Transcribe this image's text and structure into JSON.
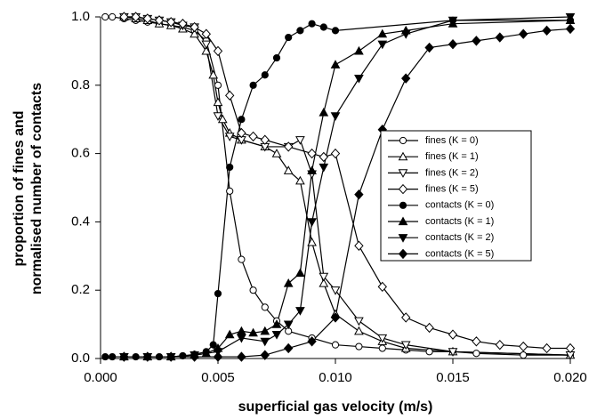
{
  "chart_data": {
    "type": "line",
    "xlabel": "superficial gas velocity (m/s)",
    "ylabel": [
      "proportion of fines and",
      "normalised number of contacts"
    ],
    "xlim": [
      0,
      0.02
    ],
    "ylim": [
      0,
      1
    ],
    "xticks": [
      {
        "value": 0,
        "label": "0.000"
      },
      {
        "value": 0.005,
        "label": "0.005"
      },
      {
        "value": 0.01,
        "label": "0.010"
      },
      {
        "value": 0.015,
        "label": "0.015"
      },
      {
        "value": 0.02,
        "label": "0.020"
      }
    ],
    "yticks": [
      {
        "value": 0,
        "label": "0.0"
      },
      0.2,
      0.4,
      0.6,
      0.8,
      {
        "value": 1,
        "label": "1.0"
      }
    ],
    "legend_position": "right",
    "series": [
      {
        "name": "fines (K = 0)",
        "color": "#000000",
        "marker": "circle",
        "filled": false,
        "x": [
          0.0002,
          0.0005,
          0.001,
          0.0015,
          0.002,
          0.0025,
          0.003,
          0.0035,
          0.004,
          0.0045,
          0.005,
          0.0055,
          0.006,
          0.0065,
          0.007,
          0.0075,
          0.008,
          0.009,
          0.01,
          0.011,
          0.012,
          0.013,
          0.014,
          0.015,
          0.016,
          0.018,
          0.02
        ],
        "values": [
          1.0,
          1.0,
          0.995,
          0.99,
          0.985,
          0.98,
          0.975,
          0.97,
          0.96,
          0.93,
          0.8,
          0.49,
          0.29,
          0.2,
          0.15,
          0.11,
          0.08,
          0.06,
          0.04,
          0.035,
          0.03,
          0.025,
          0.02,
          0.02,
          0.015,
          0.01,
          0.01
        ]
      },
      {
        "name": "fines (K = 1)",
        "color": "#000000",
        "marker": "triangle-up",
        "filled": false,
        "x": [
          0.001,
          0.0015,
          0.002,
          0.0025,
          0.003,
          0.0035,
          0.004,
          0.0045,
          0.0048,
          0.005,
          0.0052,
          0.0055,
          0.006,
          0.007,
          0.0075,
          0.008,
          0.0085,
          0.009,
          0.0095,
          0.01,
          0.011,
          0.012,
          0.013,
          0.015,
          0.02
        ],
        "values": [
          1.0,
          0.995,
          0.99,
          0.98,
          0.975,
          0.965,
          0.95,
          0.9,
          0.83,
          0.75,
          0.7,
          0.66,
          0.64,
          0.62,
          0.6,
          0.55,
          0.52,
          0.34,
          0.22,
          0.13,
          0.08,
          0.05,
          0.03,
          0.02,
          0.01
        ]
      },
      {
        "name": "fines (K = 2)",
        "color": "#000000",
        "marker": "triangle-down",
        "filled": false,
        "x": [
          0.001,
          0.0015,
          0.002,
          0.0025,
          0.003,
          0.0035,
          0.004,
          0.0045,
          0.005,
          0.0055,
          0.006,
          0.007,
          0.008,
          0.0085,
          0.009,
          0.0095,
          0.01,
          0.011,
          0.012,
          0.013,
          0.015,
          0.02
        ],
        "values": [
          1.0,
          1.0,
          0.995,
          0.99,
          0.985,
          0.975,
          0.97,
          0.92,
          0.71,
          0.65,
          0.64,
          0.62,
          0.62,
          0.64,
          0.54,
          0.24,
          0.2,
          0.11,
          0.06,
          0.04,
          0.02,
          0.01
        ]
      },
      {
        "name": "fines (K = 5)",
        "color": "#000000",
        "marker": "diamond",
        "filled": false,
        "x": [
          0.001,
          0.0015,
          0.002,
          0.0025,
          0.003,
          0.0035,
          0.004,
          0.0045,
          0.005,
          0.0055,
          0.006,
          0.0065,
          0.007,
          0.008,
          0.009,
          0.0095,
          0.01,
          0.011,
          0.012,
          0.013,
          0.014,
          0.015,
          0.016,
          0.017,
          0.018,
          0.019,
          0.02
        ],
        "values": [
          1.0,
          1.0,
          0.995,
          0.99,
          0.985,
          0.98,
          0.97,
          0.95,
          0.9,
          0.77,
          0.66,
          0.65,
          0.64,
          0.62,
          0.6,
          0.59,
          0.6,
          0.33,
          0.21,
          0.12,
          0.09,
          0.07,
          0.05,
          0.04,
          0.035,
          0.03,
          0.03
        ]
      },
      {
        "name": "contacts (K = 0)",
        "color": "#000000",
        "marker": "circle",
        "filled": true,
        "x": [
          0.0002,
          0.0005,
          0.001,
          0.0015,
          0.002,
          0.0025,
          0.003,
          0.0035,
          0.004,
          0.0045,
          0.0048,
          0.005,
          0.0055,
          0.006,
          0.0065,
          0.007,
          0.0075,
          0.008,
          0.0085,
          0.009,
          0.0095,
          0.01,
          0.015,
          0.02
        ],
        "values": [
          0.005,
          0.005,
          0.005,
          0.005,
          0.005,
          0.005,
          0.005,
          0.008,
          0.012,
          0.02,
          0.04,
          0.19,
          0.56,
          0.7,
          0.8,
          0.83,
          0.88,
          0.94,
          0.96,
          0.98,
          0.97,
          0.96,
          0.99,
          0.99
        ]
      },
      {
        "name": "contacts (K = 1)",
        "color": "#000000",
        "marker": "triangle-up",
        "filled": true,
        "x": [
          0.001,
          0.002,
          0.003,
          0.004,
          0.0045,
          0.005,
          0.0055,
          0.006,
          0.0065,
          0.007,
          0.0075,
          0.008,
          0.0085,
          0.009,
          0.0095,
          0.01,
          0.011,
          0.012,
          0.013,
          0.015,
          0.02
        ],
        "values": [
          0.005,
          0.005,
          0.005,
          0.01,
          0.015,
          0.03,
          0.07,
          0.08,
          0.075,
          0.08,
          0.1,
          0.22,
          0.25,
          0.55,
          0.72,
          0.86,
          0.9,
          0.95,
          0.96,
          0.98,
          0.99
        ]
      },
      {
        "name": "contacts (K = 2)",
        "color": "#000000",
        "marker": "triangle-down",
        "filled": true,
        "x": [
          0.001,
          0.002,
          0.003,
          0.004,
          0.005,
          0.006,
          0.007,
          0.0075,
          0.008,
          0.0085,
          0.009,
          0.0095,
          0.01,
          0.011,
          0.012,
          0.013,
          0.015,
          0.02
        ],
        "values": [
          0.005,
          0.005,
          0.005,
          0.01,
          0.02,
          0.06,
          0.05,
          0.07,
          0.1,
          0.14,
          0.4,
          0.56,
          0.71,
          0.82,
          0.92,
          0.95,
          0.99,
          1.0
        ]
      },
      {
        "name": "contacts (K = 5)",
        "color": "#000000",
        "marker": "diamond",
        "filled": true,
        "x": [
          0.001,
          0.002,
          0.003,
          0.004,
          0.005,
          0.006,
          0.007,
          0.008,
          0.009,
          0.01,
          0.011,
          0.012,
          0.013,
          0.014,
          0.015,
          0.016,
          0.017,
          0.018,
          0.019,
          0.02
        ],
        "values": [
          0.005,
          0.005,
          0.005,
          0.005,
          0.005,
          0.005,
          0.01,
          0.03,
          0.05,
          0.12,
          0.48,
          0.67,
          0.82,
          0.91,
          0.92,
          0.93,
          0.94,
          0.95,
          0.96,
          0.965
        ]
      }
    ]
  }
}
